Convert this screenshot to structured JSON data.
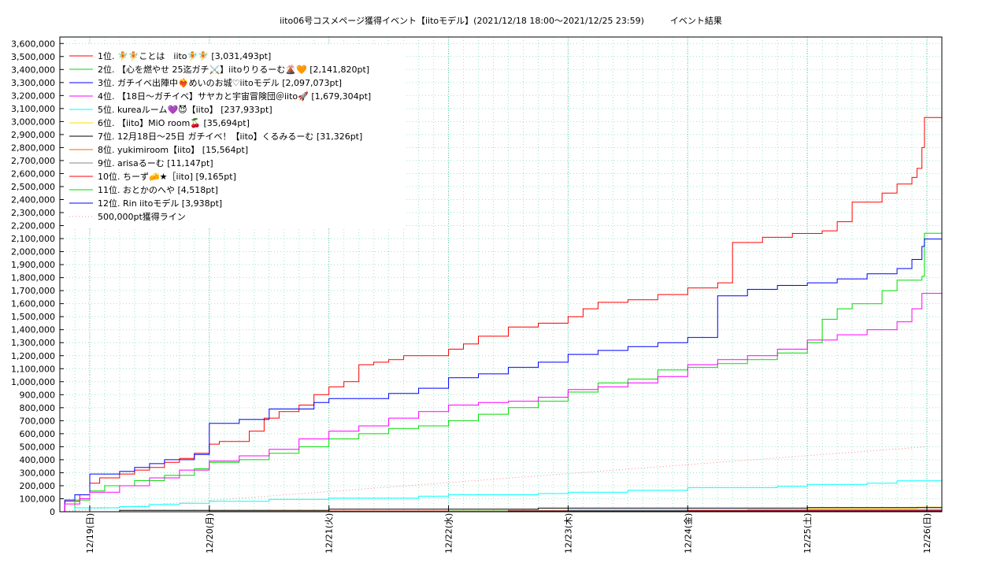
{
  "chart_data": {
    "type": "line",
    "title": "iito06号コスメページ獲得イベント【iitoモデル】(2021/12/18 18:00〜2021/12/25 23:59)　　　イベント結果",
    "xlabel": "",
    "ylabel": "",
    "x_range": [
      "2021-12-18 18:00",
      "2021-12-26 03:00"
    ],
    "ylim": [
      0,
      3650000
    ],
    "y_ticks": [
      "0",
      "100,000",
      "200,000",
      "300,000",
      "400,000",
      "500,000",
      "600,000",
      "700,000",
      "800,000",
      "900,000",
      "1,000,000",
      "1,100,000",
      "1,200,000",
      "1,300,000",
      "1,400,000",
      "1,500,000",
      "1,600,000",
      "1,700,000",
      "1,800,000",
      "1,900,000",
      "2,000,000",
      "2,100,000",
      "2,200,000",
      "2,300,000",
      "2,400,000",
      "2,500,000",
      "2,600,000",
      "2,700,000",
      "2,800,000",
      "2,900,000",
      "3,000,000",
      "3,100,000",
      "3,200,000",
      "3,300,000",
      "3,400,000",
      "3,500,000",
      "3,600,000"
    ],
    "x_ticks": [
      {
        "t": "2021-12-19 00:00",
        "label": "12/19(日)"
      },
      {
        "t": "2021-12-20 00:00",
        "label": "12/20(月)"
      },
      {
        "t": "2021-12-21 00:00",
        "label": "12/21(火)"
      },
      {
        "t": "2021-12-22 00:00",
        "label": "12/22(水)"
      },
      {
        "t": "2021-12-23 00:00",
        "label": "12/23(木)"
      },
      {
        "t": "2021-12-24 00:00",
        "label": "12/24(金)"
      },
      {
        "t": "2021-12-25 00:00",
        "label": "12/25(土)"
      },
      {
        "t": "2021-12-26 00:00",
        "label": "12/26(日)"
      }
    ],
    "grid": true,
    "legend_position": "top-left",
    "series": [
      {
        "name": "1位. 🧚🧚ことは　iito🧚🧚 [3,031,493pt]",
        "color": "#ff0000",
        "step": true,
        "points": [
          [
            "2021-12-18 18:00",
            0
          ],
          [
            "2021-12-18 19:00",
            80000
          ],
          [
            "2021-12-18 22:00",
            130000
          ],
          [
            "2021-12-19 00:00",
            220000
          ],
          [
            "2021-12-19 02:00",
            260000
          ],
          [
            "2021-12-19 06:00",
            290000
          ],
          [
            "2021-12-19 09:00",
            320000
          ],
          [
            "2021-12-19 12:00",
            340000
          ],
          [
            "2021-12-19 15:00",
            380000
          ],
          [
            "2021-12-19 18:00",
            410000
          ],
          [
            "2021-12-19 21:00",
            450000
          ],
          [
            "2021-12-20 00:00",
            520000
          ],
          [
            "2021-12-20 02:00",
            540000
          ],
          [
            "2021-12-20 08:00",
            620000
          ],
          [
            "2021-12-20 11:00",
            720000
          ],
          [
            "2021-12-20 14:00",
            770000
          ],
          [
            "2021-12-20 18:00",
            820000
          ],
          [
            "2021-12-20 21:00",
            900000
          ],
          [
            "2021-12-21 00:00",
            960000
          ],
          [
            "2021-12-21 03:00",
            1000000
          ],
          [
            "2021-12-21 06:00",
            1130000
          ],
          [
            "2021-12-21 09:00",
            1150000
          ],
          [
            "2021-12-21 12:00",
            1170000
          ],
          [
            "2021-12-21 15:00",
            1200000
          ],
          [
            "2021-12-22 00:00",
            1250000
          ],
          [
            "2021-12-22 03:00",
            1290000
          ],
          [
            "2021-12-22 06:00",
            1350000
          ],
          [
            "2021-12-22 12:00",
            1420000
          ],
          [
            "2021-12-22 18:00",
            1450000
          ],
          [
            "2021-12-23 00:00",
            1500000
          ],
          [
            "2021-12-23 03:00",
            1560000
          ],
          [
            "2021-12-23 06:00",
            1610000
          ],
          [
            "2021-12-23 12:00",
            1630000
          ],
          [
            "2021-12-23 18:00",
            1670000
          ],
          [
            "2021-12-24 00:00",
            1720000
          ],
          [
            "2021-12-24 06:00",
            1760000
          ],
          [
            "2021-12-24 09:00",
            2070000
          ],
          [
            "2021-12-24 15:00",
            2110000
          ],
          [
            "2021-12-24 21:00",
            2140000
          ],
          [
            "2021-12-25 03:00",
            2160000
          ],
          [
            "2021-12-25 06:00",
            2230000
          ],
          [
            "2021-12-25 09:00",
            2380000
          ],
          [
            "2021-12-25 15:00",
            2450000
          ],
          [
            "2021-12-25 18:00",
            2520000
          ],
          [
            "2021-12-25 21:00",
            2570000
          ],
          [
            "2021-12-25 22:00",
            2640000
          ],
          [
            "2021-12-25 23:00",
            2800000
          ],
          [
            "2021-12-25 23:30",
            3031493
          ],
          [
            "2021-12-26 03:00",
            3031493
          ]
        ]
      },
      {
        "name": "2位. 【心を燃やせ 25迄ガチ⚔️】iitoりりるーむ🌋🧡 [2,141,820pt]",
        "color": "#00dd00",
        "step": true,
        "points": [
          [
            "2021-12-18 18:00",
            0
          ],
          [
            "2021-12-18 21:00",
            90000
          ],
          [
            "2021-12-19 00:00",
            160000
          ],
          [
            "2021-12-19 03:00",
            200000
          ],
          [
            "2021-12-19 09:00",
            240000
          ],
          [
            "2021-12-19 15:00",
            280000
          ],
          [
            "2021-12-19 21:00",
            330000
          ],
          [
            "2021-12-20 00:00",
            380000
          ],
          [
            "2021-12-20 06:00",
            400000
          ],
          [
            "2021-12-20 12:00",
            450000
          ],
          [
            "2021-12-20 18:00",
            500000
          ],
          [
            "2021-12-21 00:00",
            560000
          ],
          [
            "2021-12-21 06:00",
            600000
          ],
          [
            "2021-12-21 12:00",
            640000
          ],
          [
            "2021-12-21 18:00",
            660000
          ],
          [
            "2021-12-22 00:00",
            700000
          ],
          [
            "2021-12-22 06:00",
            750000
          ],
          [
            "2021-12-22 12:00",
            800000
          ],
          [
            "2021-12-22 18:00",
            850000
          ],
          [
            "2021-12-23 00:00",
            920000
          ],
          [
            "2021-12-23 06:00",
            990000
          ],
          [
            "2021-12-23 12:00",
            1020000
          ],
          [
            "2021-12-23 18:00",
            1090000
          ],
          [
            "2021-12-24 00:00",
            1110000
          ],
          [
            "2021-12-24 06:00",
            1140000
          ],
          [
            "2021-12-24 12:00",
            1170000
          ],
          [
            "2021-12-24 18:00",
            1220000
          ],
          [
            "2021-12-25 00:00",
            1300000
          ],
          [
            "2021-12-25 03:00",
            1480000
          ],
          [
            "2021-12-25 06:00",
            1560000
          ],
          [
            "2021-12-25 09:00",
            1600000
          ],
          [
            "2021-12-25 15:00",
            1700000
          ],
          [
            "2021-12-25 18:00",
            1780000
          ],
          [
            "2021-12-25 23:00",
            1810000
          ],
          [
            "2021-12-25 23:30",
            2141820
          ],
          [
            "2021-12-26 03:00",
            2141820
          ]
        ]
      },
      {
        "name": "3位. ガチイベ出陣中❤️‍🔥めいのお城♡iitoモデル [2,097,073pt]",
        "color": "#0000ff",
        "step": true,
        "points": [
          [
            "2021-12-18 18:00",
            0
          ],
          [
            "2021-12-18 19:00",
            90000
          ],
          [
            "2021-12-18 21:00",
            130000
          ],
          [
            "2021-12-19 00:00",
            290000
          ],
          [
            "2021-12-19 06:00",
            310000
          ],
          [
            "2021-12-19 09:00",
            340000
          ],
          [
            "2021-12-19 12:00",
            370000
          ],
          [
            "2021-12-19 15:00",
            400000
          ],
          [
            "2021-12-19 21:00",
            440000
          ],
          [
            "2021-12-20 00:00",
            680000
          ],
          [
            "2021-12-20 06:00",
            710000
          ],
          [
            "2021-12-20 12:00",
            790000
          ],
          [
            "2021-12-20 21:00",
            840000
          ],
          [
            "2021-12-21 00:00",
            870000
          ],
          [
            "2021-12-21 12:00",
            910000
          ],
          [
            "2021-12-21 18:00",
            950000
          ],
          [
            "2021-12-22 00:00",
            1030000
          ],
          [
            "2021-12-22 06:00",
            1060000
          ],
          [
            "2021-12-22 12:00",
            1110000
          ],
          [
            "2021-12-22 18:00",
            1150000
          ],
          [
            "2021-12-23 00:00",
            1210000
          ],
          [
            "2021-12-23 06:00",
            1240000
          ],
          [
            "2021-12-23 12:00",
            1270000
          ],
          [
            "2021-12-23 18:00",
            1300000
          ],
          [
            "2021-12-24 00:00",
            1340000
          ],
          [
            "2021-12-24 06:00",
            1660000
          ],
          [
            "2021-12-24 12:00",
            1710000
          ],
          [
            "2021-12-24 18:00",
            1740000
          ],
          [
            "2021-12-25 00:00",
            1760000
          ],
          [
            "2021-12-25 06:00",
            1790000
          ],
          [
            "2021-12-25 12:00",
            1830000
          ],
          [
            "2021-12-25 18:00",
            1870000
          ],
          [
            "2021-12-25 21:00",
            1940000
          ],
          [
            "2021-12-25 23:00",
            2040000
          ],
          [
            "2021-12-25 23:30",
            2097073
          ],
          [
            "2021-12-26 03:00",
            2097073
          ]
        ]
      },
      {
        "name": "4位. 【18日〜ガチイベ】サヤカと宇宙冒険団＠iito🚀 [1,679,304pt]",
        "color": "#ff00ff",
        "step": true,
        "points": [
          [
            "2021-12-18 18:00",
            0
          ],
          [
            "2021-12-18 19:00",
            60000
          ],
          [
            "2021-12-18 22:00",
            100000
          ],
          [
            "2021-12-19 00:00",
            150000
          ],
          [
            "2021-12-19 06:00",
            200000
          ],
          [
            "2021-12-19 12:00",
            260000
          ],
          [
            "2021-12-19 18:00",
            320000
          ],
          [
            "2021-12-20 00:00",
            390000
          ],
          [
            "2021-12-20 06:00",
            430000
          ],
          [
            "2021-12-20 12:00",
            480000
          ],
          [
            "2021-12-20 18:00",
            560000
          ],
          [
            "2021-12-21 00:00",
            620000
          ],
          [
            "2021-12-21 06:00",
            660000
          ],
          [
            "2021-12-21 12:00",
            720000
          ],
          [
            "2021-12-21 18:00",
            770000
          ],
          [
            "2021-12-22 00:00",
            820000
          ],
          [
            "2021-12-22 06:00",
            840000
          ],
          [
            "2021-12-22 12:00",
            850000
          ],
          [
            "2021-12-22 18:00",
            880000
          ],
          [
            "2021-12-23 00:00",
            940000
          ],
          [
            "2021-12-23 06:00",
            960000
          ],
          [
            "2021-12-23 12:00",
            990000
          ],
          [
            "2021-12-23 18:00",
            1040000
          ],
          [
            "2021-12-24 00:00",
            1130000
          ],
          [
            "2021-12-24 06:00",
            1170000
          ],
          [
            "2021-12-24 12:00",
            1200000
          ],
          [
            "2021-12-24 18:00",
            1250000
          ],
          [
            "2021-12-25 00:00",
            1320000
          ],
          [
            "2021-12-25 06:00",
            1360000
          ],
          [
            "2021-12-25 12:00",
            1400000
          ],
          [
            "2021-12-25 18:00",
            1460000
          ],
          [
            "2021-12-25 21:00",
            1560000
          ],
          [
            "2021-12-25 23:00",
            1679304
          ],
          [
            "2021-12-26 03:00",
            1679304
          ]
        ]
      },
      {
        "name": "5位. kureaルーム💜😈【iito】 [237,933pt]",
        "color": "#00ffff",
        "step": true,
        "points": [
          [
            "2021-12-18 18:00",
            0
          ],
          [
            "2021-12-18 21:00",
            30000
          ],
          [
            "2021-12-19 06:00",
            40000
          ],
          [
            "2021-12-19 12:00",
            55000
          ],
          [
            "2021-12-19 18:00",
            65000
          ],
          [
            "2021-12-20 00:00",
            80000
          ],
          [
            "2021-12-20 12:00",
            95000
          ],
          [
            "2021-12-21 00:00",
            105000
          ],
          [
            "2021-12-21 18:00",
            120000
          ],
          [
            "2021-12-22 00:00",
            130000
          ],
          [
            "2021-12-22 18:00",
            140000
          ],
          [
            "2021-12-23 00:00",
            150000
          ],
          [
            "2021-12-23 12:00",
            165000
          ],
          [
            "2021-12-24 00:00",
            185000
          ],
          [
            "2021-12-24 18:00",
            195000
          ],
          [
            "2021-12-25 00:00",
            210000
          ],
          [
            "2021-12-25 12:00",
            220000
          ],
          [
            "2021-12-25 18:00",
            237933
          ],
          [
            "2021-12-26 03:00",
            237933
          ]
        ]
      },
      {
        "name": "6位. 【iito】MiO room🍒 [35,694pt]",
        "color": "#ffdd00",
        "step": true,
        "points": [
          [
            "2021-12-18 18:00",
            0
          ],
          [
            "2021-12-20 00:00",
            5000
          ],
          [
            "2021-12-23 00:00",
            15000
          ],
          [
            "2021-12-25 00:00",
            25000
          ],
          [
            "2021-12-25 22:00",
            35694
          ],
          [
            "2021-12-26 03:00",
            35694
          ]
        ]
      },
      {
        "name": "7位. 12月18日〜25日 ガチイベ！【iito】くるみるーむ [31,326pt]",
        "color": "#000000",
        "step": true,
        "points": [
          [
            "2021-12-18 18:00",
            0
          ],
          [
            "2021-12-19 06:00",
            10000
          ],
          [
            "2021-12-21 00:00",
            20000
          ],
          [
            "2021-12-22 18:00",
            28000
          ],
          [
            "2021-12-25 00:00",
            31326
          ],
          [
            "2021-12-26 03:00",
            31326
          ]
        ]
      },
      {
        "name": "8位. yukimiroom【iito】 [15,564pt]",
        "color": "#ff6600",
        "step": true,
        "points": [
          [
            "2021-12-18 18:00",
            0
          ],
          [
            "2021-12-20 12:00",
            5000
          ],
          [
            "2021-12-22 12:00",
            10000
          ],
          [
            "2021-12-24 12:00",
            15564
          ],
          [
            "2021-12-26 03:00",
            15564
          ]
        ]
      },
      {
        "name": "9位. arisaるーむ [11,147pt]",
        "color": "#888888",
        "step": true,
        "points": [
          [
            "2021-12-18 18:00",
            0
          ],
          [
            "2021-12-20 00:00",
            5000
          ],
          [
            "2021-12-23 00:00",
            11147
          ],
          [
            "2021-12-26 03:00",
            11147
          ]
        ]
      },
      {
        "name": "10位. ちーず🧀★［iito] [9,165pt]",
        "color": "#ff0000",
        "step": true,
        "points": [
          [
            "2021-12-18 18:00",
            0
          ],
          [
            "2021-12-21 00:00",
            5000
          ],
          [
            "2021-12-24 00:00",
            9165
          ],
          [
            "2021-12-26 03:00",
            9165
          ]
        ]
      },
      {
        "name": "11位. おとかのへや [4,518pt]",
        "color": "#00dd00",
        "step": true,
        "points": [
          [
            "2021-12-18 18:00",
            0
          ],
          [
            "2021-12-22 00:00",
            4518
          ],
          [
            "2021-12-26 03:00",
            4518
          ]
        ]
      },
      {
        "name": "12位. Rin iitoモデル [3,938pt]",
        "color": "#0000ff",
        "step": true,
        "points": [
          [
            "2021-12-18 18:00",
            0
          ],
          [
            "2021-12-22 12:00",
            3938
          ],
          [
            "2021-12-26 03:00",
            3938
          ]
        ]
      },
      {
        "name": "500,000pt獲得ライン",
        "color": "#ff8888",
        "dotted": true,
        "step": false,
        "points": [
          [
            "2021-12-18 18:00",
            0
          ],
          [
            "2021-12-25 23:59",
            500000
          ]
        ]
      }
    ]
  }
}
